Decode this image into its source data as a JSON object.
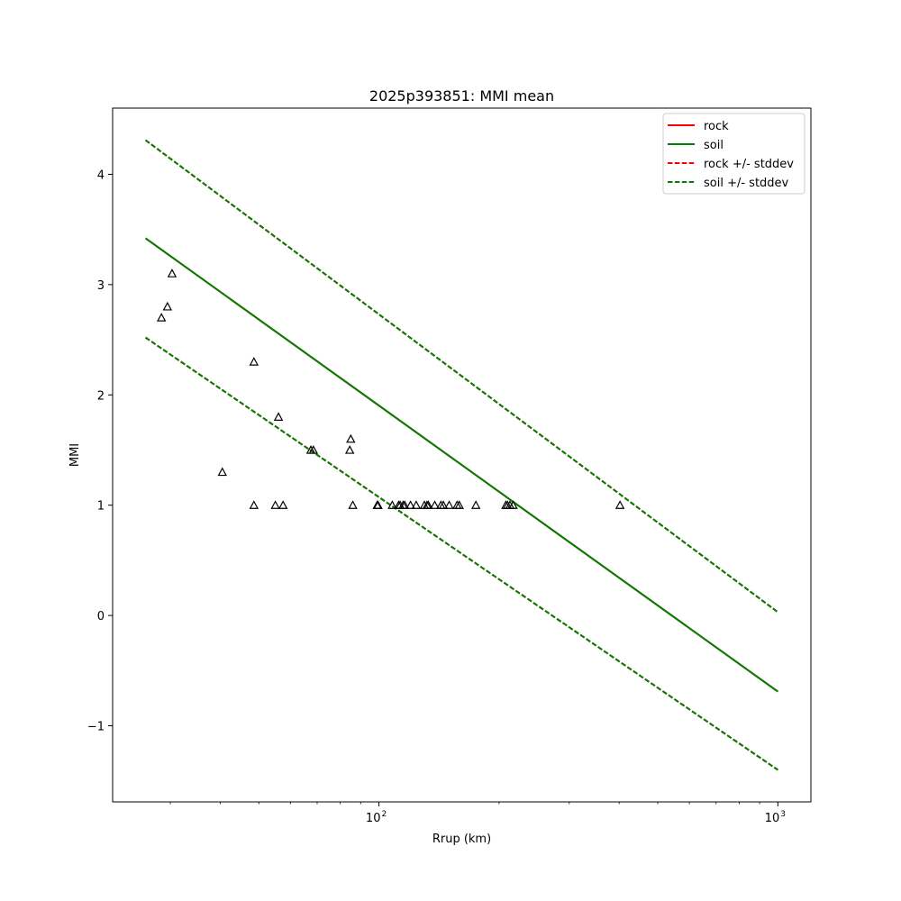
{
  "chart_data": {
    "type": "line",
    "title": "2025p393851: MMI mean",
    "xlabel": "Rrup (km)",
    "ylabel": "MMI",
    "xscale": "log",
    "xlim": [
      21.5,
      1210
    ],
    "ylim": [
      -1.69,
      4.6
    ],
    "grid": false,
    "legend_position": "top-right",
    "x_ticks": [
      {
        "value": 100,
        "base": "10",
        "exp": "2"
      },
      {
        "value": 1000,
        "base": "10",
        "exp": "3"
      }
    ],
    "y_ticks": [
      {
        "value": -1,
        "label": "−1"
      },
      {
        "value": 0,
        "label": "0"
      },
      {
        "value": 1,
        "label": "1"
      },
      {
        "value": 2,
        "label": "2"
      },
      {
        "value": 3,
        "label": "3"
      },
      {
        "value": 4,
        "label": "4"
      }
    ],
    "series": [
      {
        "name": "rock",
        "style": "solid",
        "color": "#ff0000",
        "x": [
          26,
          1000
        ],
        "y": [
          3.42,
          -0.69
        ]
      },
      {
        "name": "soil",
        "style": "solid",
        "color": "#008000",
        "x": [
          26,
          1000
        ],
        "y": [
          3.42,
          -0.69
        ]
      },
      {
        "name": "rock +/- stddev",
        "style": "dashed",
        "color": "#ff0000",
        "x": [
          26,
          1000
        ],
        "y": [
          4.31,
          0.03
        ],
        "x2": [
          26,
          1000
        ],
        "y2": [
          2.52,
          -1.4
        ]
      },
      {
        "name": "soil +/- stddev",
        "style": "dashed",
        "color": "#008000",
        "x": [
          26,
          1000
        ],
        "y": [
          4.31,
          0.03
        ],
        "x2": [
          26,
          1000
        ],
        "y2": [
          2.52,
          -1.4
        ]
      }
    ],
    "observations": {
      "marker": "triangle-open",
      "color": "#000000",
      "points": [
        [
          28.5,
          2.7
        ],
        [
          29.5,
          2.8
        ],
        [
          30.3,
          3.1
        ],
        [
          40.5,
          1.3
        ],
        [
          48.6,
          1.0
        ],
        [
          48.6,
          2.3
        ],
        [
          55,
          1.0
        ],
        [
          56,
          1.8
        ],
        [
          57.5,
          1.0
        ],
        [
          67.5,
          1.5
        ],
        [
          68.5,
          1.5
        ],
        [
          84.5,
          1.5
        ],
        [
          85,
          1.6
        ],
        [
          86,
          1.0
        ],
        [
          99,
          1.0
        ],
        [
          99.5,
          1.0
        ],
        [
          108,
          1.0
        ],
        [
          112,
          1.0
        ],
        [
          113,
          1.0
        ],
        [
          115,
          1.0
        ],
        [
          116,
          1.0
        ],
        [
          120,
          1.0
        ],
        [
          124,
          1.0
        ],
        [
          130,
          1.0
        ],
        [
          132,
          1.0
        ],
        [
          133,
          1.0
        ],
        [
          138,
          1.0
        ],
        [
          143,
          1.0
        ],
        [
          145,
          1.0
        ],
        [
          150,
          1.0
        ],
        [
          157,
          1.0
        ],
        [
          159,
          1.0
        ],
        [
          175,
          1.0
        ],
        [
          208,
          1.0
        ],
        [
          210,
          1.0
        ],
        [
          213,
          1.0
        ],
        [
          217,
          1.0
        ],
        [
          402,
          1.0
        ]
      ]
    }
  }
}
